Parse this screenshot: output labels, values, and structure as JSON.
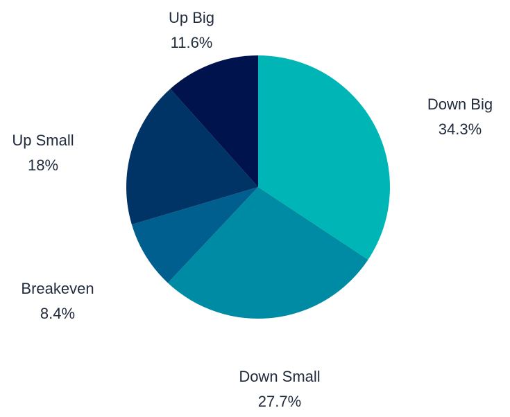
{
  "chart_data": {
    "type": "pie",
    "title": "",
    "slices": [
      {
        "label": "Down Big",
        "value": 34.3,
        "value_label": "34.3%",
        "color": "#00b5b5"
      },
      {
        "label": "Down Small",
        "value": 27.7,
        "value_label": "27.7%",
        "color": "#008ba5"
      },
      {
        "label": "Breakeven",
        "value": 8.4,
        "value_label": "8.4%",
        "color": "#005f8f"
      },
      {
        "label": "Up Small",
        "value": 18.0,
        "value_label": "18%",
        "color": "#003366"
      },
      {
        "label": "Up Big",
        "value": 11.6,
        "value_label": "11.6%",
        "color": "#00134d"
      }
    ],
    "start_angle": "12 o'clock",
    "direction": "clockwise",
    "legend": "none",
    "label_placement": "outside"
  }
}
